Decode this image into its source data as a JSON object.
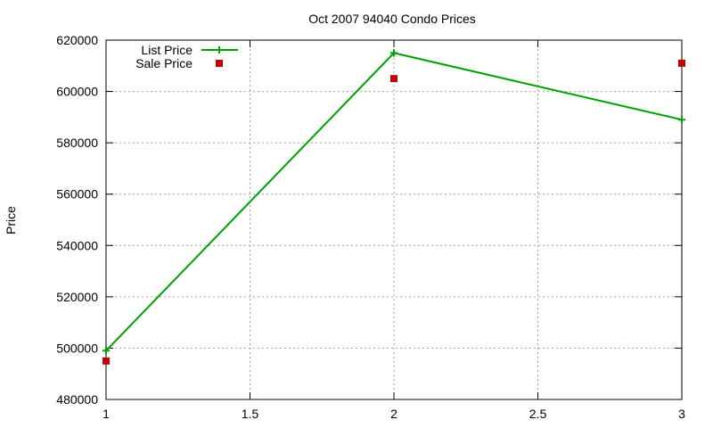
{
  "chart_data": {
    "type": "line",
    "title": "Oct 2007 94040 Condo Prices",
    "xlabel": "",
    "ylabel": "Price",
    "xlim": [
      1,
      3
    ],
    "ylim": [
      480000,
      620000
    ],
    "x_ticks": [
      "1",
      "1.5",
      "2",
      "2.5",
      "3"
    ],
    "y_ticks": [
      "480000",
      "500000",
      "520000",
      "540000",
      "560000",
      "580000",
      "600000",
      "620000"
    ],
    "grid": true,
    "legend_position": "top-left",
    "series": [
      {
        "name": "List Price",
        "style": "lines+points",
        "color": "#00a000",
        "x": [
          1,
          2,
          3
        ],
        "values": [
          499000,
          615000,
          589000
        ]
      },
      {
        "name": "Sale Price",
        "style": "points",
        "color": "#c00000",
        "x": [
          1,
          2,
          3
        ],
        "values": [
          495000,
          605000,
          611000
        ]
      }
    ]
  }
}
